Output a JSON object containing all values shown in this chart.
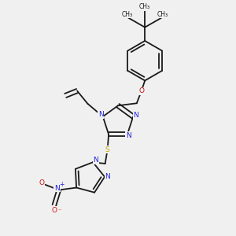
{
  "background_color": "#f0f0f0",
  "bond_color": "#1a1a1a",
  "n_color": "#2222dd",
  "o_color": "#cc1111",
  "s_color": "#bbaa00",
  "lw": 1.3,
  "figsize": [
    3.0,
    3.0
  ],
  "dpi": 100,
  "xlim": [
    0.0,
    1.0
  ],
  "ylim": [
    0.0,
    1.0
  ]
}
